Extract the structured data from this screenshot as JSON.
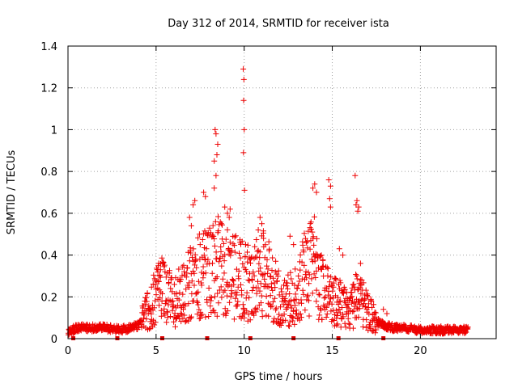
{
  "chart_data": {
    "type": "scatter",
    "title": "Day 312 of 2014, SRMTID for receiver ista",
    "xlabel": "GPS time / hours",
    "ylabel": "SRMTID / TECUs",
    "xlim": [
      0,
      24.3
    ],
    "ylim": [
      0,
      1.4
    ],
    "x_ticks": [
      0,
      5,
      10,
      15,
      20
    ],
    "x_tick_labels": [
      "0",
      "5",
      "10",
      "15",
      "20"
    ],
    "y_ticks": [
      0,
      0.2,
      0.4,
      0.6,
      0.8,
      1.0,
      1.2,
      1.4
    ],
    "y_tick_labels": [
      "0",
      "0.2",
      "0.4",
      "0.6",
      "0.8",
      "1",
      "1.2",
      "1.4"
    ],
    "grid": true,
    "marker": "+",
    "marker_color": "#ee0000",
    "series": [
      {
        "name": "SRMTID",
        "profile_x": [
          0,
          0.5,
          1,
          2,
          3,
          3.5,
          4,
          4.5,
          5,
          5.5,
          6,
          6.5,
          7,
          7.5,
          8,
          8.5,
          9,
          9.5,
          10,
          10.5,
          11,
          11.5,
          12,
          12.5,
          13,
          13.5,
          14,
          14.5,
          15,
          15.5,
          16,
          16.5,
          17,
          17.5,
          18,
          18.5,
          19,
          20,
          21,
          22,
          22.7
        ],
        "profile_y": [
          0.03,
          0.05,
          0.05,
          0.05,
          0.04,
          0.05,
          0.06,
          0.12,
          0.2,
          0.22,
          0.16,
          0.2,
          0.25,
          0.3,
          0.3,
          0.33,
          0.3,
          0.28,
          0.25,
          0.27,
          0.3,
          0.25,
          0.18,
          0.17,
          0.2,
          0.3,
          0.33,
          0.2,
          0.17,
          0.15,
          0.12,
          0.2,
          0.12,
          0.08,
          0.06,
          0.05,
          0.05,
          0.04,
          0.04,
          0.04,
          0.04
        ],
        "outliers": [
          [
            8.35,
            1.0
          ],
          [
            8.4,
            0.98
          ],
          [
            8.5,
            0.93
          ],
          [
            8.3,
            0.85
          ],
          [
            8.45,
            0.88
          ],
          [
            8.4,
            0.78
          ],
          [
            8.3,
            0.72
          ],
          [
            9.95,
            1.29
          ],
          [
            9.98,
            1.24
          ],
          [
            9.97,
            1.14
          ],
          [
            10.0,
            1.0
          ],
          [
            9.96,
            0.89
          ],
          [
            10.02,
            0.71
          ],
          [
            14.0,
            0.74
          ],
          [
            13.9,
            0.72
          ],
          [
            14.1,
            0.7
          ],
          [
            14.8,
            0.76
          ],
          [
            14.9,
            0.73
          ],
          [
            14.85,
            0.67
          ],
          [
            14.9,
            0.63
          ],
          [
            16.3,
            0.78
          ],
          [
            16.4,
            0.66
          ],
          [
            16.35,
            0.64
          ],
          [
            16.5,
            0.63
          ],
          [
            16.45,
            0.61
          ],
          [
            7.7,
            0.7
          ],
          [
            7.8,
            0.68
          ],
          [
            7.2,
            0.66
          ],
          [
            7.1,
            0.64
          ],
          [
            6.9,
            0.58
          ],
          [
            7.0,
            0.54
          ],
          [
            8.9,
            0.63
          ],
          [
            9.2,
            0.62
          ],
          [
            9.05,
            0.6
          ],
          [
            9.15,
            0.58
          ],
          [
            8.7,
            0.55
          ],
          [
            10.9,
            0.58
          ],
          [
            11.0,
            0.55
          ],
          [
            10.8,
            0.52
          ],
          [
            11.1,
            0.48
          ],
          [
            5.15,
            0.36
          ],
          [
            5.25,
            0.33
          ],
          [
            5.2,
            0.3
          ],
          [
            12.6,
            0.49
          ],
          [
            12.8,
            0.45
          ],
          [
            15.4,
            0.43
          ],
          [
            15.6,
            0.4
          ],
          [
            16.6,
            0.36
          ],
          [
            17.9,
            0.14
          ],
          [
            18.1,
            0.12
          ]
        ]
      }
    ],
    "data_gaps_hours": [
      0.3,
      2.8,
      5.35,
      7.9,
      10.35,
      12.8,
      15.35,
      17.9
    ]
  }
}
